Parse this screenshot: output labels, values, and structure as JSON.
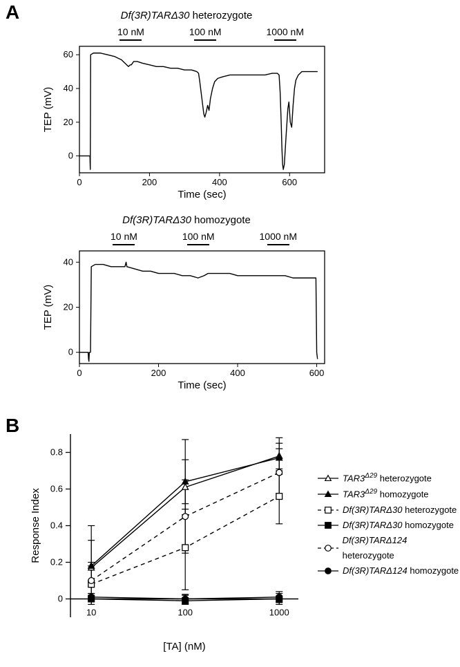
{
  "panelA": {
    "label": "A",
    "top_chart": {
      "title_prefix": "Df(3R)TARΔ30",
      "title_suffix": " heterozygote",
      "stimuli": [
        "10 nM",
        "100 nM",
        "1000 nM"
      ],
      "x": {
        "label": "Time (sec)",
        "min": 0,
        "max": 700,
        "ticks": [
          0,
          200,
          400,
          600
        ]
      },
      "y": {
        "label": "TEP (mV)",
        "min": -10,
        "max": 65,
        "ticks": [
          0,
          20,
          40,
          60
        ]
      },
      "trace_color": "#000000",
      "line_width": 1.4,
      "trace": [
        [
          0,
          0
        ],
        [
          30,
          0
        ],
        [
          31,
          -8
        ],
        [
          32,
          60
        ],
        [
          40,
          61
        ],
        [
          60,
          61
        ],
        [
          80,
          60
        ],
        [
          100,
          59
        ],
        [
          110,
          58
        ],
        [
          120,
          57
        ],
        [
          125,
          56
        ],
        [
          130,
          55
        ],
        [
          135,
          54
        ],
        [
          140,
          53
        ],
        [
          145,
          54
        ],
        [
          148,
          54
        ],
        [
          155,
          56
        ],
        [
          165,
          56
        ],
        [
          180,
          55
        ],
        [
          200,
          54
        ],
        [
          220,
          53
        ],
        [
          240,
          53
        ],
        [
          260,
          52
        ],
        [
          280,
          52
        ],
        [
          300,
          51
        ],
        [
          320,
          51
        ],
        [
          335,
          50
        ],
        [
          340,
          49
        ],
        [
          343,
          45
        ],
        [
          346,
          40
        ],
        [
          349,
          35
        ],
        [
          352,
          30
        ],
        [
          355,
          25
        ],
        [
          358,
          23
        ],
        [
          362,
          26
        ],
        [
          366,
          30
        ],
        [
          370,
          27
        ],
        [
          374,
          34
        ],
        [
          380,
          40
        ],
        [
          386,
          44
        ],
        [
          395,
          46
        ],
        [
          410,
          47
        ],
        [
          430,
          48
        ],
        [
          450,
          48
        ],
        [
          470,
          48
        ],
        [
          490,
          48
        ],
        [
          510,
          48
        ],
        [
          530,
          48
        ],
        [
          550,
          49
        ],
        [
          565,
          49
        ],
        [
          570,
          48
        ],
        [
          573,
          38
        ],
        [
          576,
          20
        ],
        [
          578,
          5
        ],
        [
          580,
          -5
        ],
        [
          582,
          -8
        ],
        [
          585,
          -5
        ],
        [
          590,
          12
        ],
        [
          595,
          28
        ],
        [
          598,
          32
        ],
        [
          602,
          20
        ],
        [
          606,
          17
        ],
        [
          610,
          30
        ],
        [
          614,
          40
        ],
        [
          618,
          45
        ],
        [
          625,
          48
        ],
        [
          635,
          50
        ],
        [
          650,
          50
        ],
        [
          665,
          50
        ],
        [
          672,
          50
        ],
        [
          675,
          50
        ],
        [
          680,
          50
        ]
      ],
      "background_color": "#ffffff"
    },
    "bottom_chart": {
      "title_prefix": "Df(3R)TARΔ30",
      "title_suffix": " homozygote",
      "stimuli": [
        "10 nM",
        "100 nM",
        "1000 nM"
      ],
      "x": {
        "label": "Time (sec)",
        "min": 0,
        "max": 620,
        "ticks": [
          0,
          200,
          400,
          600
        ]
      },
      "y": {
        "label": "TEP (mV)",
        "min": -5,
        "max": 45,
        "ticks": [
          0,
          20,
          40
        ]
      },
      "trace_color": "#000000",
      "line_width": 1.4,
      "trace": [
        [
          0,
          0
        ],
        [
          22,
          0
        ],
        [
          23,
          -3
        ],
        [
          24,
          -4
        ],
        [
          25,
          0
        ],
        [
          28,
          0
        ],
        [
          30,
          38
        ],
        [
          40,
          39
        ],
        [
          60,
          39
        ],
        [
          80,
          38
        ],
        [
          100,
          38
        ],
        [
          115,
          38
        ],
        [
          118,
          40
        ],
        [
          120,
          38
        ],
        [
          140,
          37
        ],
        [
          160,
          36
        ],
        [
          180,
          36
        ],
        [
          200,
          35
        ],
        [
          220,
          35
        ],
        [
          240,
          35
        ],
        [
          260,
          34
        ],
        [
          280,
          34
        ],
        [
          300,
          33
        ],
        [
          315,
          34
        ],
        [
          325,
          35
        ],
        [
          340,
          35
        ],
        [
          360,
          35
        ],
        [
          380,
          35
        ],
        [
          400,
          34
        ],
        [
          420,
          34
        ],
        [
          440,
          34
        ],
        [
          460,
          34
        ],
        [
          480,
          34
        ],
        [
          500,
          34
        ],
        [
          520,
          34
        ],
        [
          540,
          33
        ],
        [
          560,
          33
        ],
        [
          580,
          33
        ],
        [
          590,
          33
        ],
        [
          598,
          33
        ],
        [
          600,
          0
        ],
        [
          602,
          -3
        ]
      ],
      "background_color": "#ffffff"
    }
  },
  "panelB": {
    "label": "B",
    "x": {
      "label": "[TA] (nM)",
      "ticks": [
        10,
        100,
        1000
      ],
      "min": 6,
      "max": 1600,
      "scale": "log"
    },
    "y": {
      "label": "Response Index",
      "ticks": [
        0,
        0.2,
        0.4,
        0.6,
        0.8
      ],
      "min": -0.1,
      "max": 0.9
    },
    "background_color": "#ffffff",
    "axis_color": "#000000",
    "tick_fontsize": 13,
    "label_fontsize": 15,
    "error_bar_width": 1.2,
    "marker_size": 7,
    "series": [
      {
        "id": "TAR3d29_het",
        "label_prefix": "TAR3",
        "label_super": "Δ29",
        "label_suffix": " heterozygote",
        "marker": "triangle",
        "fill": "none",
        "stroke": "#000000",
        "dash": "solid",
        "points": [
          {
            "x": 10,
            "y": 0.17,
            "el": 0.1,
            "eh": 0.23
          },
          {
            "x": 100,
            "y": 0.61,
            "el": 0.15,
            "eh": 0.26
          },
          {
            "x": 1000,
            "y": 0.78,
            "el": 0.08,
            "eh": 0.1
          }
        ]
      },
      {
        "id": "TAR3d29_hom",
        "label_prefix": "TAR3",
        "label_super": "Δ29",
        "label_suffix": " homozygote",
        "marker": "triangle",
        "fill": "#000000",
        "stroke": "#000000",
        "dash": "solid",
        "points": [
          {
            "x": 10,
            "y": 0.18,
            "el": 0.08,
            "eh": 0.14
          },
          {
            "x": 100,
            "y": 0.64,
            "el": 0.12,
            "eh": 0.12
          },
          {
            "x": 1000,
            "y": 0.77,
            "el": 0.09,
            "eh": 0.08
          }
        ]
      },
      {
        "id": "Df30_het",
        "label_prefix": "Df(3R)TARΔ30",
        "label_super": "",
        "label_suffix": " heterozygote",
        "marker": "square",
        "fill": "none",
        "stroke": "#000000",
        "dash": "dashed",
        "points": [
          {
            "x": 10,
            "y": 0.08,
            "el": 0.07,
            "eh": 0.1
          },
          {
            "x": 100,
            "y": 0.28,
            "el": 0.23,
            "eh": 0.21
          },
          {
            "x": 1000,
            "y": 0.56,
            "el": 0.15,
            "eh": 0.15
          }
        ]
      },
      {
        "id": "Df30_hom",
        "label_prefix": "Df(3R)TARΔ30",
        "label_super": "",
        "label_suffix": " homozygote",
        "marker": "square",
        "fill": "#000000",
        "stroke": "#000000",
        "dash": "solid",
        "points": [
          {
            "x": 10,
            "y": 0.0,
            "el": 0.03,
            "eh": 0.03
          },
          {
            "x": 100,
            "y": -0.01,
            "el": 0.02,
            "eh": 0.03
          },
          {
            "x": 1000,
            "y": 0.0,
            "el": 0.03,
            "eh": 0.03
          }
        ]
      },
      {
        "id": "Df124_het",
        "label_prefix": "Df(3R)TARΔ124",
        "label_super": "",
        "label_suffix": " heterozygote",
        "marker": "circle",
        "fill": "none",
        "stroke": "#000000",
        "dash": "dashed",
        "points": [
          {
            "x": 10,
            "y": 0.1,
            "el": 0.08,
            "eh": 0.1
          },
          {
            "x": 100,
            "y": 0.45,
            "el": 0.2,
            "eh": 0.2
          },
          {
            "x": 1000,
            "y": 0.69,
            "el": 0.14,
            "eh": 0.13
          }
        ]
      },
      {
        "id": "Df124_hom",
        "label_prefix": "Df(3R)TARΔ124",
        "label_super": "",
        "label_suffix": " homozygote",
        "marker": "circle",
        "fill": "#000000",
        "stroke": "#000000",
        "dash": "solid",
        "points": [
          {
            "x": 10,
            "y": 0.01,
            "el": 0.02,
            "eh": 0.02
          },
          {
            "x": 100,
            "y": 0.0,
            "el": 0.025,
            "eh": 0.025
          },
          {
            "x": 1000,
            "y": 0.01,
            "el": 0.03,
            "eh": 0.03
          }
        ]
      }
    ]
  }
}
